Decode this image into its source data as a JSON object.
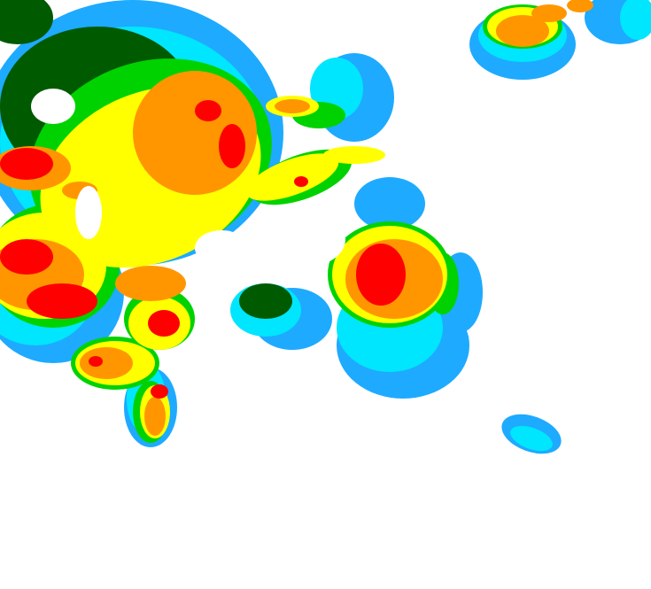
{
  "legend_colors": {
    "background": "#ffffff",
    "light_blue": "#1eaaff",
    "cyan": "#00e6ff",
    "dark_green": "#005a00",
    "green": "#00d200",
    "yellow": "#ffff00",
    "orange": "#ff9600",
    "red": "#ff0000"
  }
}
